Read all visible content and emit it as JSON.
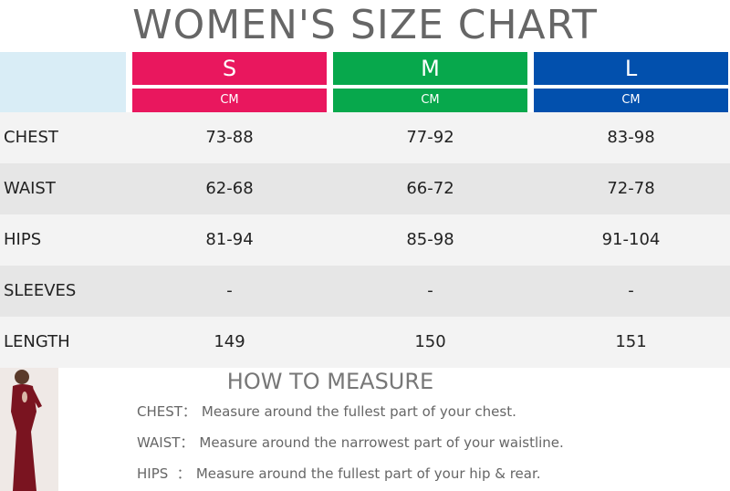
{
  "title": "WOMEN'S SIZE CHART",
  "sizes": [
    {
      "name": "S",
      "unit": "CM"
    },
    {
      "name": "M",
      "unit": "CM"
    },
    {
      "name": "L",
      "unit": "CM"
    }
  ],
  "rows": [
    {
      "label": "CHEST",
      "values": [
        "73-88",
        "77-92",
        "83-98"
      ]
    },
    {
      "label": "WAIST",
      "values": [
        "62-68",
        "66-72",
        "72-78"
      ]
    },
    {
      "label": "HIPS",
      "values": [
        "81-94",
        "85-98",
        "91-104"
      ]
    },
    {
      "label": "SLEEVES",
      "values": [
        "-",
        "-",
        "-"
      ]
    },
    {
      "label": "LENGTH",
      "values": [
        "149",
        "150",
        "151"
      ]
    }
  ],
  "measure": {
    "heading": "HOW TO MEASURE",
    "items": [
      {
        "label": "CHEST：",
        "text": "Measure around the fullest part of your chest."
      },
      {
        "label": "WAIST：",
        "text": "Measure around the narrowest part of your waistline."
      },
      {
        "label": "HIPS  ：",
        "text": "Measure around the fullest part of your hip & rear."
      }
    ]
  }
}
